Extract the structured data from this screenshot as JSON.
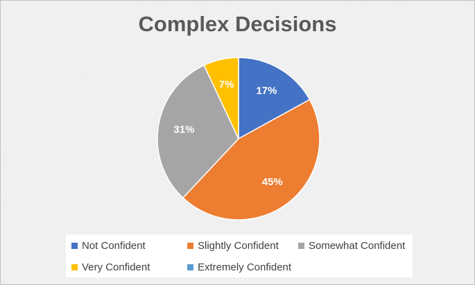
{
  "chart_data": {
    "type": "pie",
    "title": "Complex Decisions",
    "categories": [
      "Not Confident",
      "Slightly Confident",
      "Somewhat Confident",
      "Very Confident",
      "Extremely Confident"
    ],
    "values": [
      17,
      45,
      31,
      7,
      0
    ],
    "labels": [
      "17%",
      "45%",
      "31%",
      "7%",
      ""
    ],
    "colors": [
      "#4472c4",
      "#ed7d31",
      "#a5a5a5",
      "#ffc000",
      "#5b9bd5"
    ],
    "legend": "bottom"
  }
}
